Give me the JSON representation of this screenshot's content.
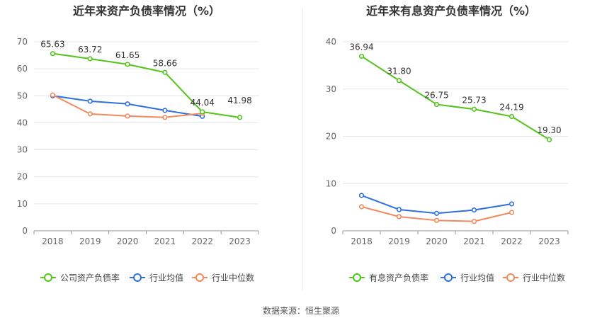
{
  "colors": {
    "company": "#52c41a",
    "avg": "#2f6fde",
    "median": "#f08a5d",
    "grid": "#e6e6e6",
    "axis": "#999999",
    "divider": "#e8e8e8"
  },
  "source": "数据来源：恒生聚源",
  "chart_data": [
    {
      "type": "line",
      "title": "近年来资产负债率情况（%）",
      "categories": [
        "2018",
        "2019",
        "2020",
        "2021",
        "2022",
        "2023"
      ],
      "ylim": [
        0,
        70
      ],
      "yticks": [
        0,
        10,
        20,
        30,
        40,
        50,
        60,
        70
      ],
      "grid": true,
      "legend_position": "bottom",
      "series": [
        {
          "name": "公司资产负债率",
          "key": "company",
          "values": [
            65.63,
            63.72,
            61.65,
            58.66,
            44.04,
            41.98
          ],
          "labels": [
            "65.63",
            "63.72",
            "61.65",
            "58.66",
            "44.04",
            "41.98"
          ]
        },
        {
          "name": "行业均值",
          "key": "avg",
          "values": [
            50.0,
            48.0,
            47.0,
            44.6,
            42.4,
            null
          ]
        },
        {
          "name": "行业中位数",
          "key": "median",
          "values": [
            50.3,
            43.3,
            42.5,
            42.0,
            43.5,
            null
          ]
        }
      ]
    },
    {
      "type": "line",
      "title": "近年来有息资产负债率情况（%）",
      "categories": [
        "2018",
        "2019",
        "2020",
        "2021",
        "2022",
        "2023"
      ],
      "ylim": [
        0,
        40
      ],
      "yticks": [
        0,
        10,
        20,
        30,
        40
      ],
      "grid": true,
      "legend_position": "bottom",
      "series": [
        {
          "name": "有息资产负债率",
          "key": "company",
          "values": [
            36.94,
            31.8,
            26.75,
            25.73,
            24.19,
            19.3
          ],
          "labels": [
            "36.94",
            "31.80",
            "26.75",
            "25.73",
            "24.19",
            "19.30"
          ]
        },
        {
          "name": "行业均值",
          "key": "avg",
          "values": [
            7.5,
            4.5,
            3.7,
            4.4,
            5.7,
            null
          ]
        },
        {
          "name": "行业中位数",
          "key": "median",
          "values": [
            5.1,
            3.0,
            2.2,
            2.0,
            3.9,
            null
          ]
        }
      ]
    }
  ]
}
